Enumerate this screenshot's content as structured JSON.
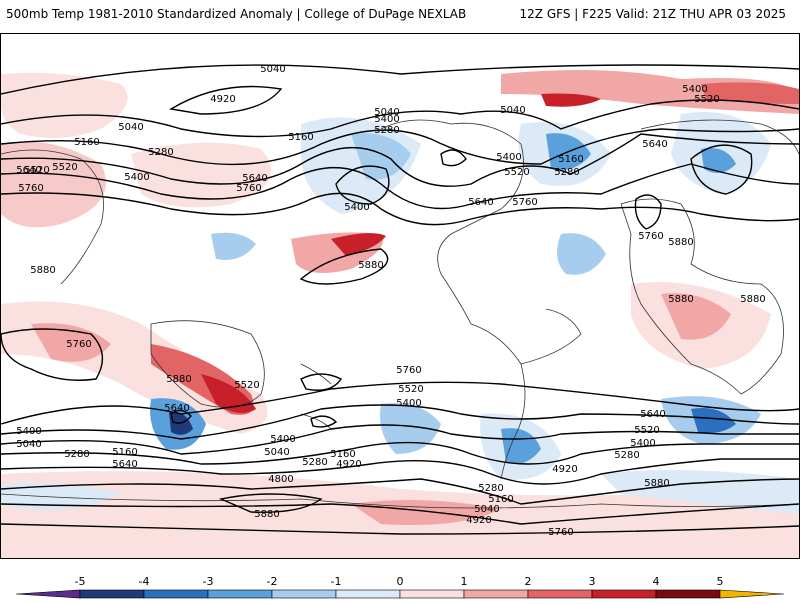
{
  "header": {
    "title": "500mb Temp 1981-2010 Standardized Anomaly | College of DuPage NEXLAB",
    "run_info": "12Z GFS | F225 Valid: 21Z THU APR 03 2025"
  },
  "map": {
    "contour_labels": [
      {
        "id": "c1",
        "text": "5040"
      },
      {
        "id": "c2",
        "text": "4920"
      },
      {
        "id": "c3",
        "text": "5040"
      },
      {
        "id": "c4",
        "text": "5160"
      },
      {
        "id": "c5",
        "text": "5280"
      },
      {
        "id": "c6",
        "text": "5400"
      },
      {
        "id": "c7",
        "text": "5520"
      },
      {
        "id": "c8",
        "text": "5640"
      },
      {
        "id": "c9",
        "text": "5760"
      },
      {
        "id": "c10",
        "text": "5400"
      },
      {
        "id": "c11",
        "text": "5520"
      },
      {
        "id": "c12",
        "text": "5640"
      },
      {
        "id": "c13",
        "text": "5760"
      },
      {
        "id": "c14",
        "text": "5160"
      },
      {
        "id": "c15",
        "text": "5280"
      },
      {
        "id": "c16",
        "text": "5040"
      },
      {
        "id": "c17",
        "text": "5400"
      },
      {
        "id": "c18",
        "text": "5040"
      },
      {
        "id": "c19",
        "text": "5400"
      },
      {
        "id": "c20",
        "text": "5520"
      },
      {
        "id": "c21",
        "text": "5160"
      },
      {
        "id": "c22",
        "text": "5280"
      },
      {
        "id": "c23",
        "text": "5640"
      },
      {
        "id": "c24",
        "text": "5760"
      },
      {
        "id": "c25",
        "text": "5880"
      },
      {
        "id": "c26",
        "text": "5400"
      },
      {
        "id": "c27",
        "text": "5520"
      },
      {
        "id": "c28",
        "text": "5640"
      },
      {
        "id": "c29",
        "text": "5760"
      },
      {
        "id": "c30",
        "text": "5880"
      },
      {
        "id": "c31",
        "text": "5880"
      },
      {
        "id": "c32",
        "text": "5880"
      },
      {
        "id": "c33",
        "text": "5880"
      },
      {
        "id": "c34",
        "text": "5760"
      },
      {
        "id": "c35",
        "text": "5880"
      },
      {
        "id": "c36",
        "text": "5520"
      },
      {
        "id": "c37",
        "text": "5640"
      },
      {
        "id": "c38",
        "text": "5400"
      },
      {
        "id": "c39",
        "text": "5040"
      },
      {
        "id": "c40",
        "text": "5280"
      },
      {
        "id": "c41",
        "text": "5160"
      },
      {
        "id": "c42",
        "text": "5640"
      },
      {
        "id": "c43",
        "text": "5400"
      },
      {
        "id": "c44",
        "text": "5040"
      },
      {
        "id": "c45",
        "text": "5280"
      },
      {
        "id": "c46",
        "text": "5160"
      },
      {
        "id": "c47",
        "text": "4920"
      },
      {
        "id": "c48",
        "text": "4800"
      },
      {
        "id": "c49",
        "text": "5880"
      },
      {
        "id": "c50",
        "text": "5760"
      },
      {
        "id": "c51",
        "text": "5520"
      },
      {
        "id": "c52",
        "text": "5400"
      },
      {
        "id": "c53",
        "text": "5280"
      },
      {
        "id": "c54",
        "text": "5160"
      },
      {
        "id": "c55",
        "text": "5040"
      },
      {
        "id": "c56",
        "text": "4920"
      },
      {
        "id": "c57",
        "text": "5760"
      },
      {
        "id": "c58",
        "text": "5640"
      },
      {
        "id": "c59",
        "text": "5520"
      },
      {
        "id": "c60",
        "text": "5400"
      },
      {
        "id": "c61",
        "text": "5280"
      },
      {
        "id": "c62",
        "text": "4920"
      },
      {
        "id": "c63",
        "text": "5880"
      }
    ]
  },
  "colorbar": {
    "ticks": [
      "-5",
      "-4",
      "-3",
      "-2",
      "-1",
      "0",
      "1",
      "2",
      "3",
      "4",
      "5"
    ],
    "colors": [
      "#5a2d8c",
      "#1f3a7a",
      "#2a6fc0",
      "#5aa0dc",
      "#a6cdee",
      "#dce9f6",
      "#fbe0e0",
      "#f2a7a7",
      "#e36464",
      "#c8202a",
      "#7a0a12",
      "#f3b400"
    ]
  }
}
